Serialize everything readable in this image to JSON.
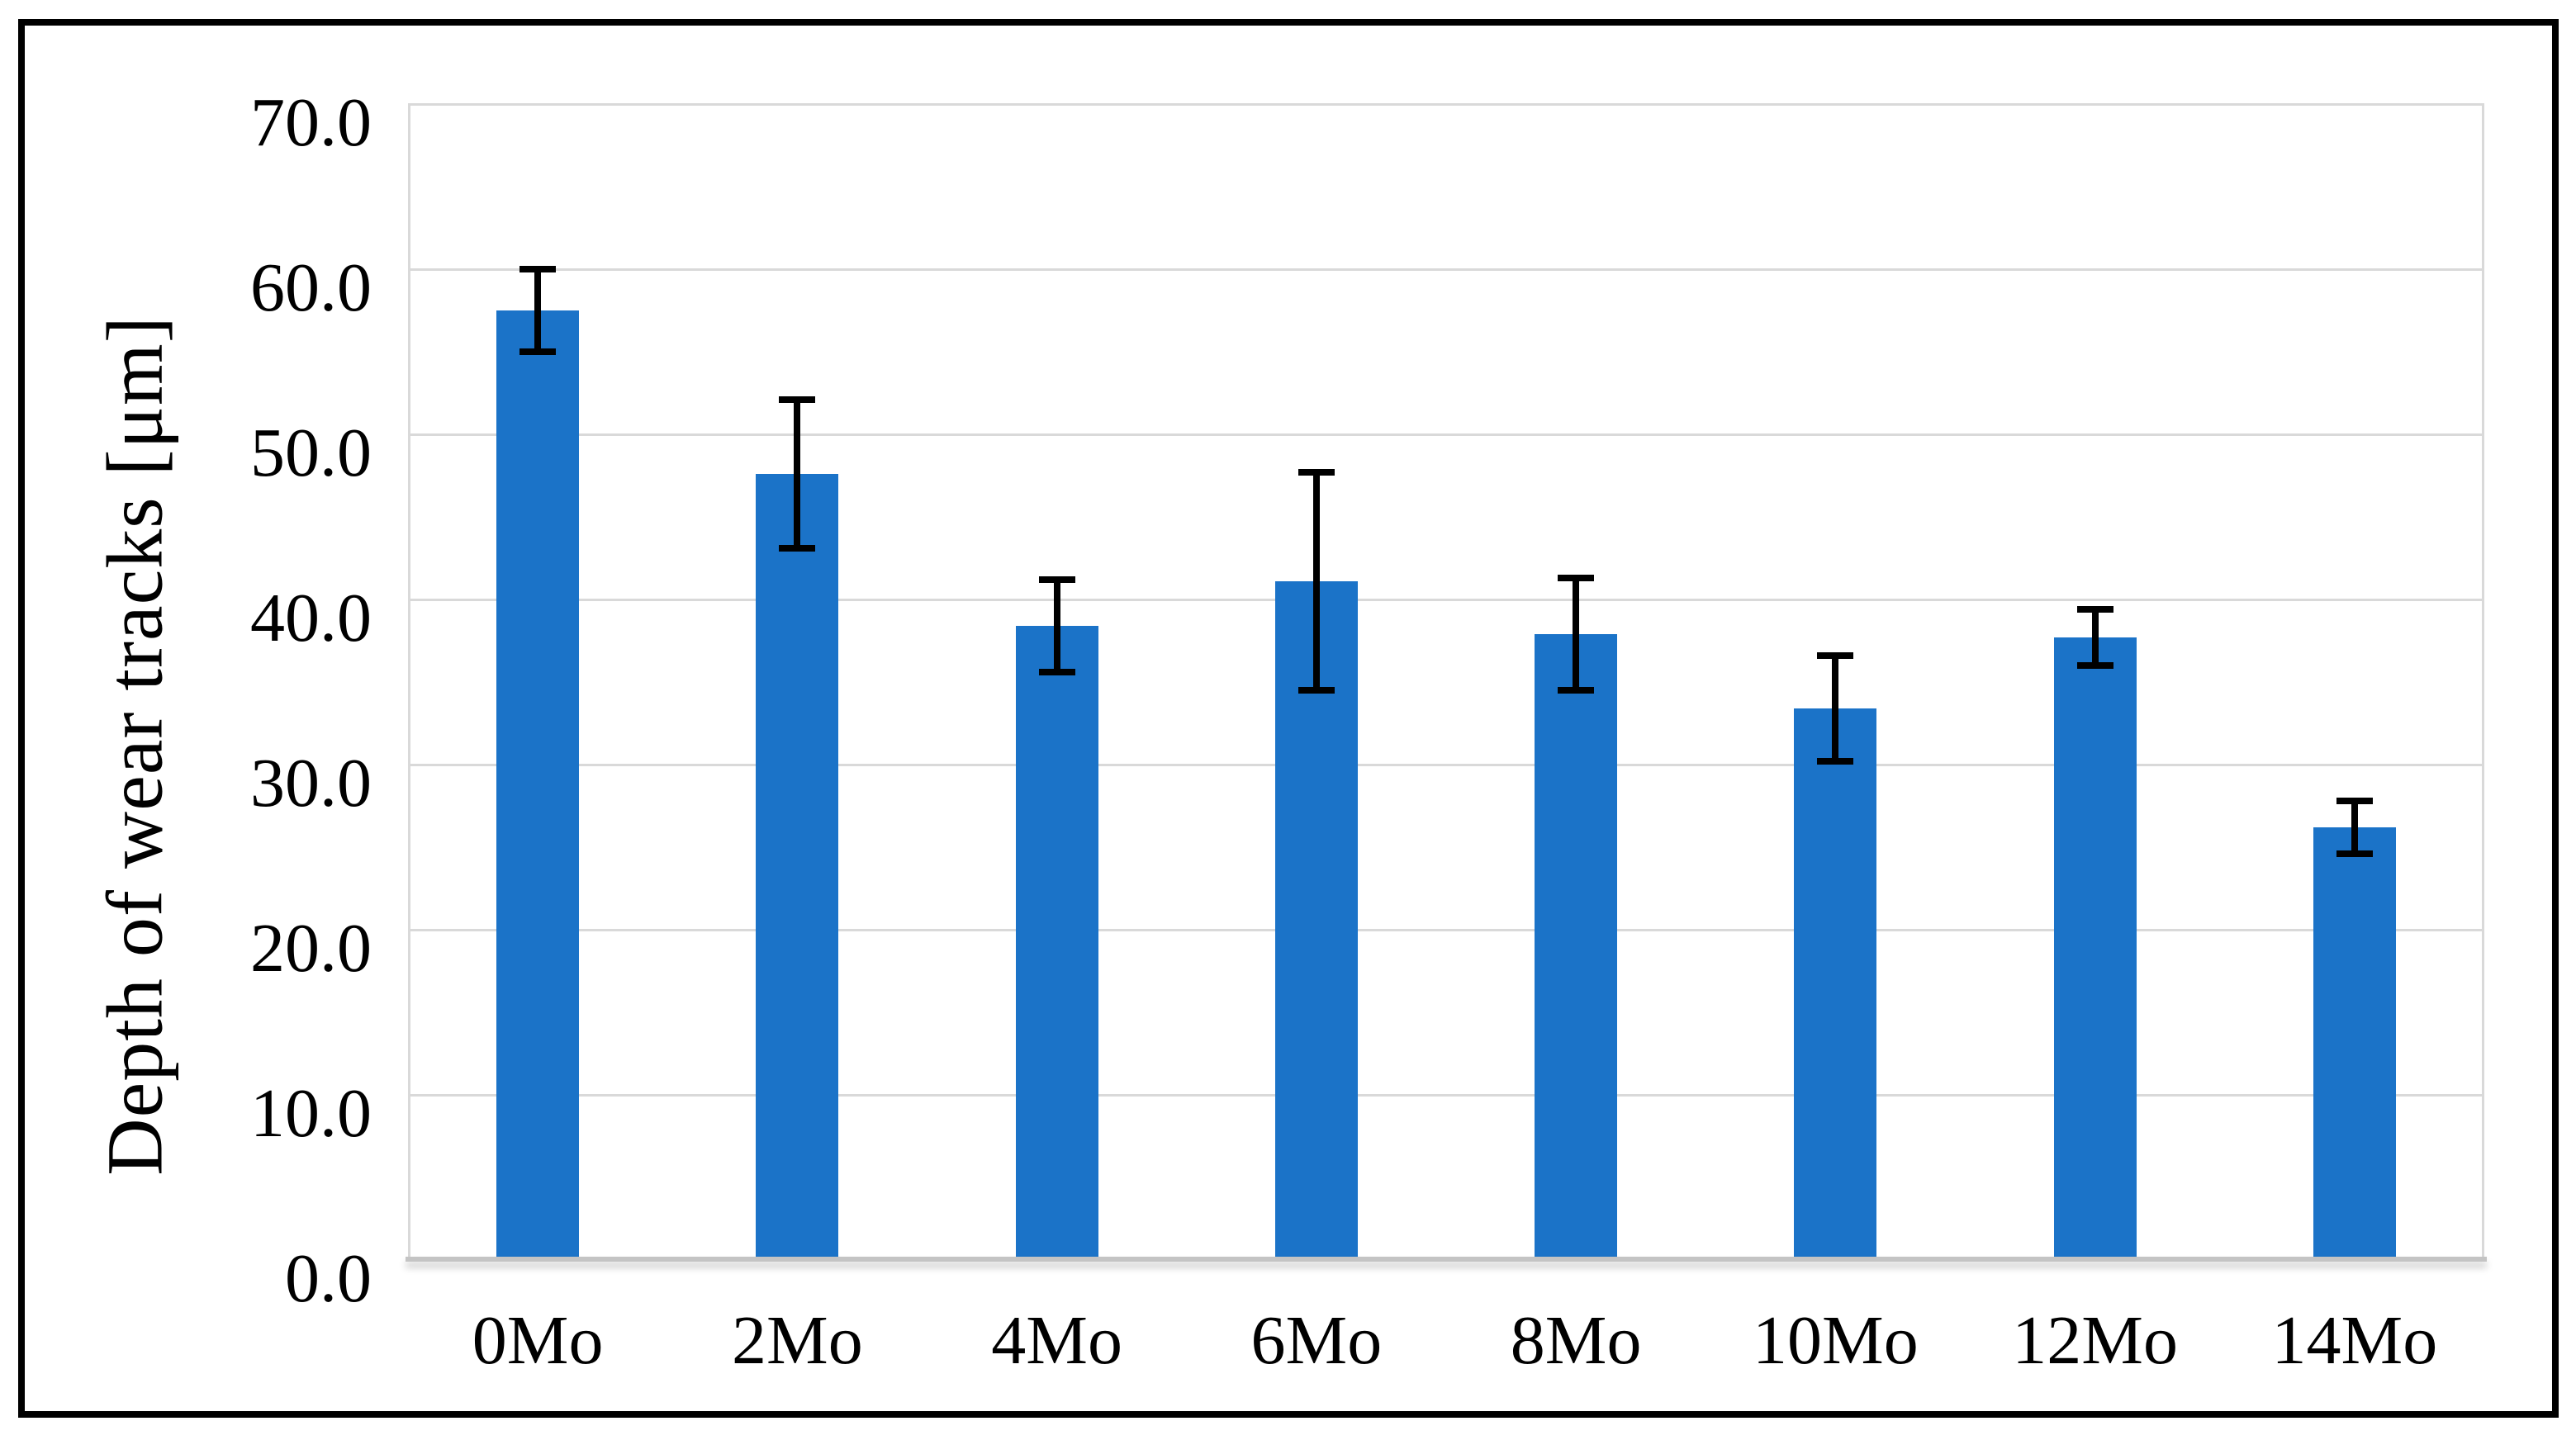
{
  "chart_data": {
    "type": "bar",
    "title": "",
    "xlabel": "",
    "ylabel": "Depth of wear tracks [μm]",
    "categories": [
      "0Mo",
      "2Mo",
      "4Mo",
      "6Mo",
      "8Mo",
      "10Mo",
      "12Mo",
      "14Mo"
    ],
    "values": [
      57.5,
      47.6,
      38.4,
      41.1,
      37.9,
      33.4,
      37.7,
      26.2
    ],
    "error_bars": [
      2.5,
      4.5,
      2.8,
      6.6,
      3.4,
      3.2,
      1.7,
      1.6
    ],
    "ylim": [
      0,
      70
    ],
    "ytick_step": 10,
    "ytick_labels": [
      "0.0",
      "10.0",
      "20.0",
      "30.0",
      "40.0",
      "50.0",
      "60.0",
      "70.0"
    ],
    "grid": "horizontal",
    "legend": "none",
    "colors": {
      "bar": "#1B73C8",
      "gridline": "#D9D9D9",
      "axis_line": "#C4C4C4",
      "error_bar": "#000000",
      "frame_border": "#000000",
      "background": "#FFFFFF",
      "text": "#000000"
    }
  }
}
